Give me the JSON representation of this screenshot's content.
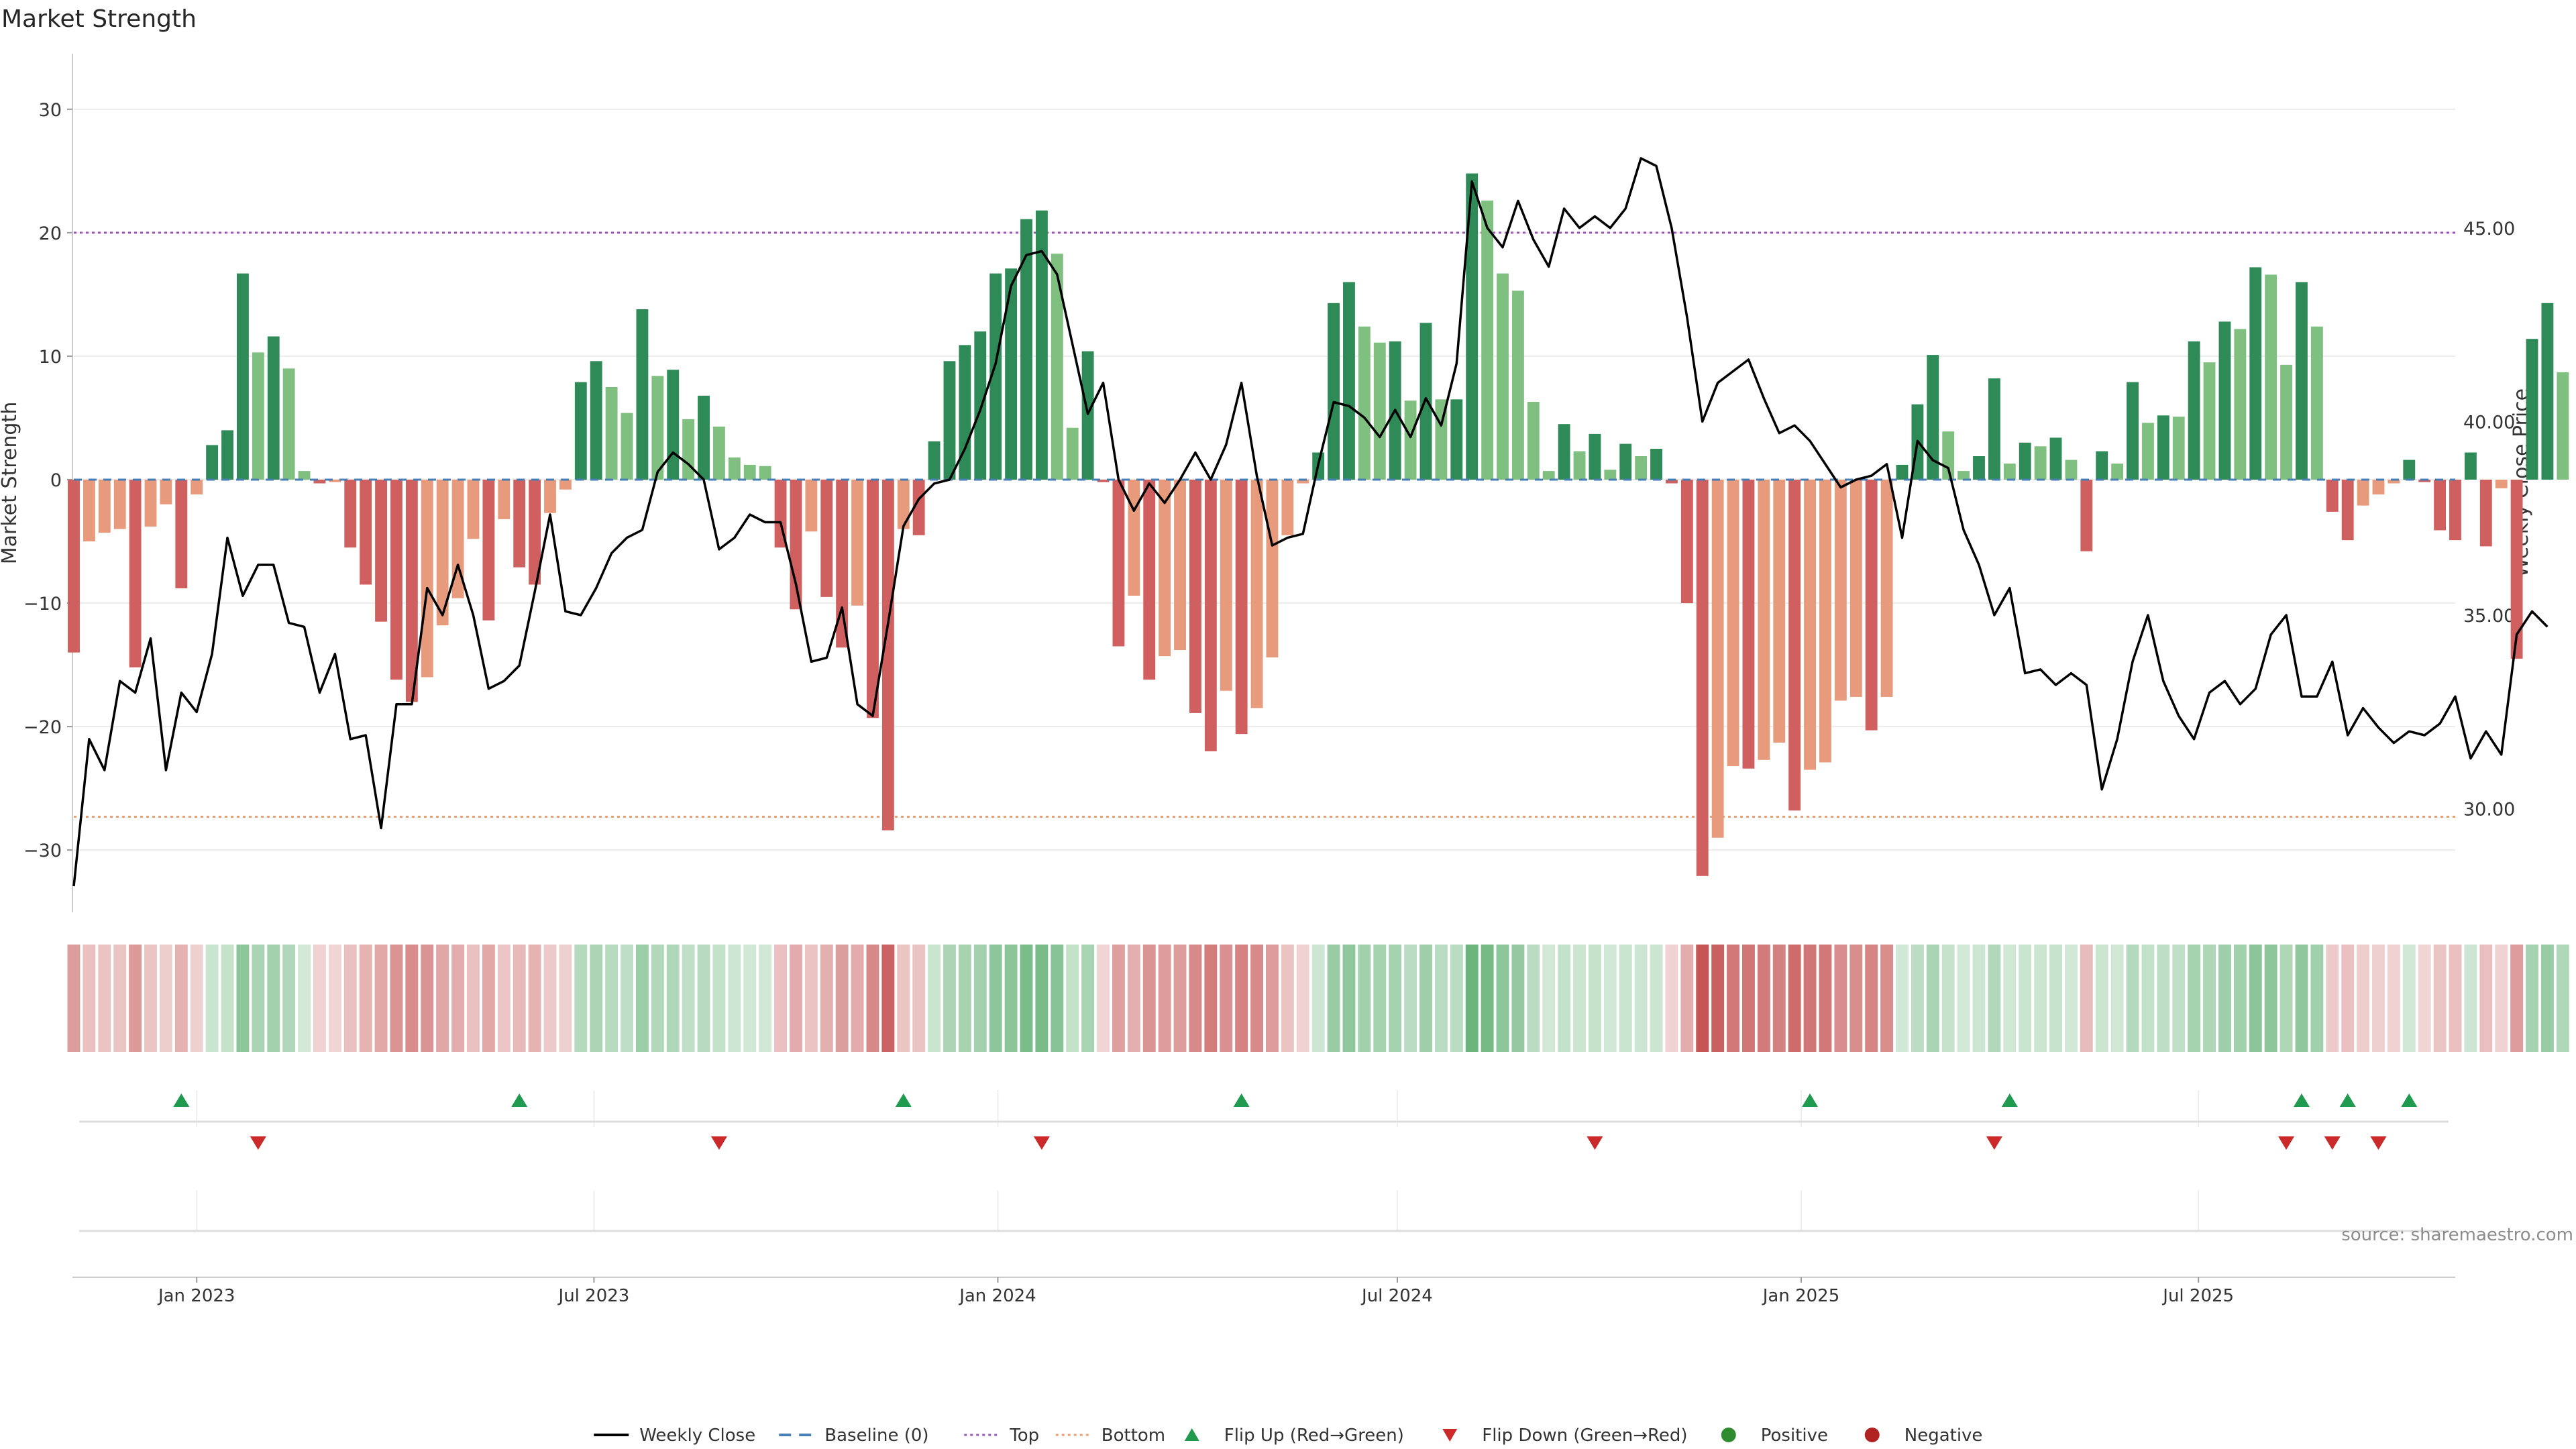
{
  "chart_data": {
    "type": "bar",
    "title": "Market Strength",
    "ylabel": "Market Strength",
    "y2label": "Weekly Close Price",
    "ylim": [
      -34.5,
      34.5
    ],
    "y2lim": [
      27.5,
      49.5
    ],
    "yticks": [
      30,
      20,
      10,
      0,
      -10,
      -20,
      -30
    ],
    "y2ticks": [
      "45.00",
      "40.00",
      "35.00",
      "30.00"
    ],
    "y2tick_values": [
      45,
      40,
      35,
      30
    ],
    "xlim": [
      "2022-11-06",
      "2025-10-26"
    ],
    "xticks": [
      {
        "label": "Jan 2023",
        "date": "2023-01-01"
      },
      {
        "label": "Jul 2023",
        "date": "2023-07-01"
      },
      {
        "label": "Jan 2024",
        "date": "2024-01-01"
      },
      {
        "label": "Jul 2024",
        "date": "2024-07-01"
      },
      {
        "label": "Jan 2025",
        "date": "2025-01-01"
      },
      {
        "label": "Jul 2025",
        "date": "2025-07-01"
      }
    ],
    "top_threshold": 20,
    "bottom_threshold": -27.3,
    "baseline": 0,
    "start_date": "2022-11-06",
    "interval_days": 7,
    "market_strength": [
      -14,
      -5,
      -4.3,
      -4,
      -15.2,
      -3.8,
      -2,
      -8.8,
      -1.2,
      2.8,
      4,
      16.7,
      10.3,
      11.6,
      9,
      0.7,
      -0.3,
      -0.2,
      -5.5,
      -8.5,
      -11.5,
      -16.2,
      -18,
      -16,
      -11.8,
      -9.6,
      -4.8,
      -11.4,
      -3.2,
      -7.1,
      -8.5,
      -2.7,
      -0.8,
      7.9,
      9.6,
      7.5,
      5.4,
      13.8,
      8.4,
      8.9,
      4.9,
      6.8,
      4.3,
      1.8,
      1.2,
      1.1,
      -5.5,
      -10.5,
      -4.2,
      -9.5,
      -13.6,
      -10.2,
      -19.3,
      -28.4,
      -4,
      -4.5,
      3.1,
      9.6,
      10.9,
      12,
      16.7,
      17.1,
      21.1,
      21.8,
      18.3,
      4.2,
      10.4,
      -0.2,
      -13.5,
      -9.4,
      -16.2,
      -14.3,
      -13.8,
      -18.9,
      -22,
      -17.1,
      -20.6,
      -18.5,
      -14.4,
      -4.5,
      -0.3,
      2.2,
      14.3,
      16,
      12.4,
      11.1,
      11.2,
      6.4,
      12.7,
      6.5,
      6.5,
      24.8,
      22.6,
      16.7,
      15.3,
      6.3,
      0.7,
      4.5,
      2.3,
      3.7,
      0.8,
      2.9,
      1.9,
      2.5,
      -0.3,
      -10,
      -32.1,
      -29,
      -23.2,
      -23.4,
      -22.7,
      -21.3,
      -26.8,
      -23.5,
      -22.9,
      -17.9,
      -17.6,
      -20.3,
      -17.6,
      1.2,
      6.1,
      10.1,
      3.9,
      0.7,
      1.9,
      8.2,
      1.3,
      3,
      2.7,
      3.4,
      1.6,
      -5.8,
      2.3,
      1.3,
      7.9,
      4.6,
      5.2,
      5.1,
      11.2,
      9.5,
      12.8,
      12.2,
      17.2,
      16.6,
      9.3,
      16,
      12.4,
      -2.6,
      -4.9,
      -2.1,
      -1.2,
      -0.3,
      1.6,
      -0.2,
      -4.1,
      -4.9,
      2.2,
      -5.4,
      -0.7,
      -14.5,
      11.4,
      14.3,
      8.7
    ],
    "weekly_close": [
      28.0,
      31.8,
      31.0,
      33.3,
      33.0,
      34.4,
      31.0,
      33.0,
      32.5,
      34.0,
      37.0,
      35.5,
      36.3,
      36.3,
      34.8,
      34.7,
      33.0,
      34.0,
      31.8,
      31.9,
      29.5,
      32.7,
      32.7,
      35.7,
      35.0,
      36.3,
      35.0,
      33.1,
      33.3,
      33.7,
      35.6,
      37.6,
      35.1,
      35.0,
      35.7,
      36.6,
      37.0,
      37.2,
      38.7,
      39.2,
      38.9,
      38.5,
      36.7,
      37.0,
      37.6,
      37.4,
      37.4,
      35.8,
      33.8,
      33.9,
      35.2,
      32.7,
      32.4,
      34.8,
      37.3,
      38.0,
      38.4,
      38.5,
      39.3,
      40.3,
      41.5,
      43.5,
      44.3,
      44.4,
      43.8,
      42.0,
      40.2,
      41.0,
      38.5,
      37.7,
      38.4,
      37.9,
      38.5,
      39.2,
      38.5,
      39.4,
      41.0,
      38.6,
      36.8,
      37.0,
      37.1,
      38.9,
      40.5,
      40.4,
      40.1,
      39.6,
      40.3,
      39.6,
      40.6,
      39.9,
      41.5,
      46.2,
      45.0,
      44.5,
      45.7,
      44.7,
      44.0,
      45.5,
      45.0,
      45.3,
      45.0,
      45.5,
      46.8,
      46.6,
      45.0,
      42.7,
      40.0,
      41.0,
      41.3,
      41.6,
      40.6,
      39.7,
      39.9,
      39.5,
      38.9,
      38.3,
      38.5,
      38.6,
      38.9,
      37.0,
      39.5,
      39.0,
      38.8,
      37.2,
      36.3,
      35.0,
      35.7,
      33.5,
      33.6,
      33.2,
      33.5,
      33.2,
      30.5,
      31.8,
      33.8,
      35.0,
      33.3,
      32.4,
      31.8,
      33.0,
      33.3,
      32.7,
      33.1,
      34.5,
      35.0,
      32.9,
      32.9,
      33.8,
      31.9,
      32.6,
      32.1,
      31.7,
      32.0,
      31.9,
      32.2,
      32.9,
      31.3,
      32.0,
      31.4,
      34.5,
      35.1,
      34.7
    ],
    "flip_up_dates": [
      "2022-12-25",
      "2023-05-28",
      "2023-11-19",
      "2024-04-21",
      "2025-01-05",
      "2025-04-06",
      "2025-08-17",
      "2025-09-07",
      "2025-10-05"
    ],
    "flip_down_dates": [
      "2023-01-29",
      "2023-08-27",
      "2024-01-21",
      "2024-09-29",
      "2025-03-30",
      "2025-08-10",
      "2025-08-31",
      "2025-09-21"
    ],
    "heatmap_label": "",
    "source": "source: sharemaestro.com",
    "legend": {
      "position": "bottom",
      "items": [
        {
          "label": "Weekly Close",
          "marker": "line",
          "color": "#000000"
        },
        {
          "label": "Baseline (0)",
          "marker": "dash",
          "color": "#4a7fb5"
        },
        {
          "label": "Top",
          "marker": "dot",
          "color": "#9b59b6"
        },
        {
          "label": "Bottom",
          "marker": "dot",
          "color": "#e8a070"
        },
        {
          "label": "Flip Up (Red→Green)",
          "marker": "triangle-up",
          "color": "#1f9a4e"
        },
        {
          "label": "Flip Down (Green→Red)",
          "marker": "triangle-down",
          "color": "#cc2a2a"
        },
        {
          "label": "Positive",
          "marker": "circle",
          "color": "#2e8b2e"
        },
        {
          "label": "Negative",
          "marker": "circle",
          "color": "#b22222"
        }
      ]
    },
    "colors": {
      "bull_strong": "#2e8b57",
      "bull_weak": "#7fbf7f",
      "bear_strong": "#d06060",
      "bear_weak": "#e89b7c",
      "close_line": "#000000",
      "top_line": "#9b59b6",
      "bottom_line": "#e8a070",
      "baseline": "#4a7fb5",
      "grid": "#ececec"
    }
  }
}
